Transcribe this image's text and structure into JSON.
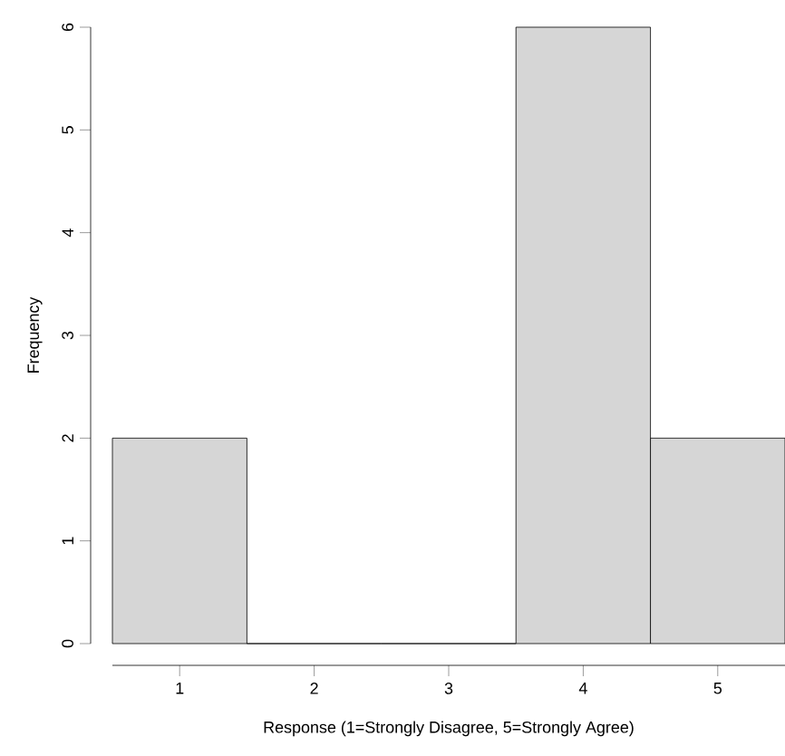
{
  "chart_data": {
    "type": "histogram",
    "xlabel": "Response (1=Strongly Disagree, 5=Strongly Agree)",
    "ylabel": "Frequency",
    "bins": [
      0.5,
      1.5,
      2.5,
      3.5,
      4.5,
      5.5
    ],
    "values": [
      2,
      0,
      0,
      6,
      2
    ],
    "color": "#d6d6d6",
    "xlim": [
      0.5,
      5.5
    ],
    "xticks": [
      1,
      2,
      3,
      4,
      5
    ],
    "ylim": [
      0,
      6
    ],
    "yticks": [
      0,
      1,
      2,
      3,
      4,
      5,
      6
    ],
    "grid": false
  }
}
